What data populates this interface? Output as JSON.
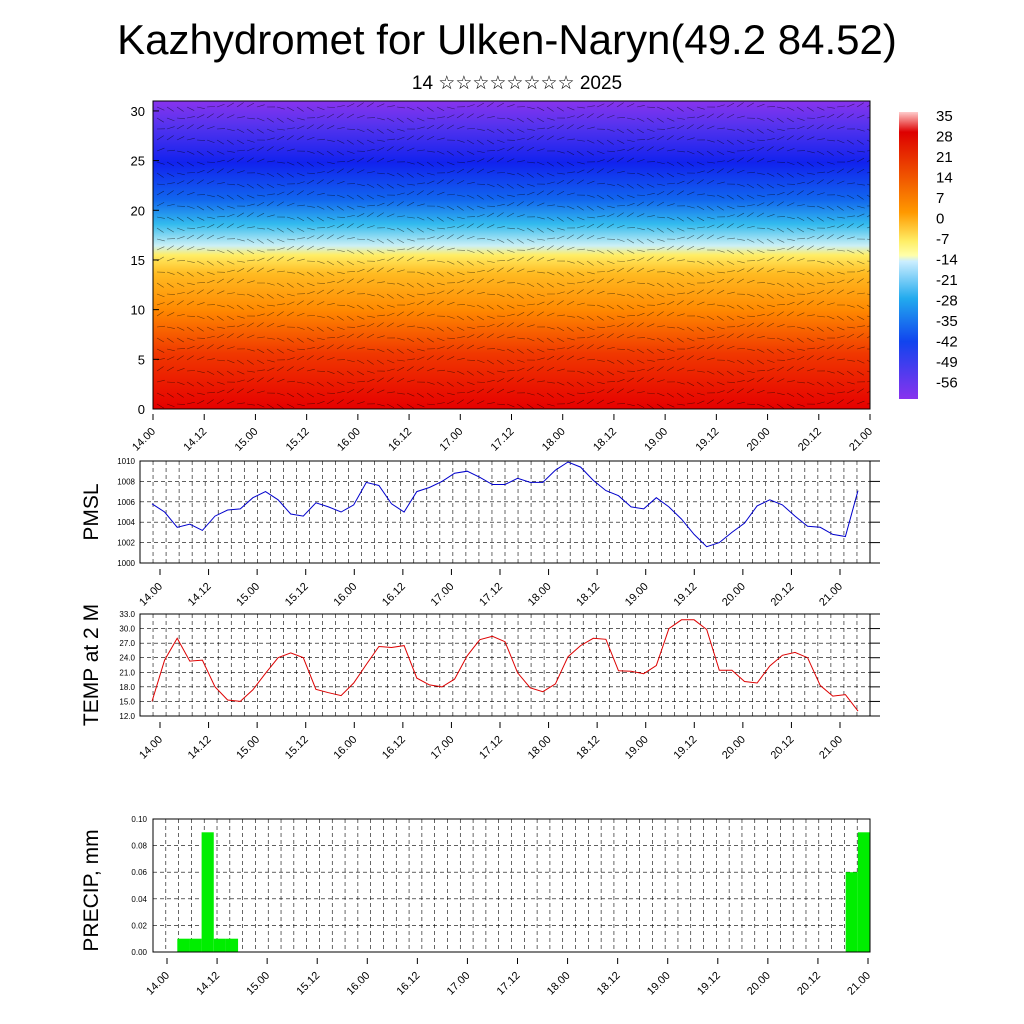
{
  "title": "Kazhydromet for Ulken-Naryn(49.2 84.52)",
  "subtitle": "14 ☆☆☆☆☆☆☆☆ 2025",
  "time_labels": [
    "14.00",
    "14.12",
    "15.00",
    "15.12",
    "16.00",
    "16.12",
    "17.00",
    "17.12",
    "18.00",
    "18.12",
    "19.00",
    "19.12",
    "20.00",
    "20.12",
    "21.00"
  ],
  "chart_data": [
    {
      "type": "heatmap",
      "name": "upper-air",
      "x": [
        "14.00",
        "14.12",
        "15.00",
        "15.12",
        "16.00",
        "16.12",
        "17.00",
        "17.12",
        "18.00",
        "18.12",
        "19.00",
        "19.12",
        "20.00",
        "20.12",
        "21.00"
      ],
      "ylim": [
        0,
        31
      ],
      "yticks": [
        "0",
        "5",
        "10",
        "15",
        "20",
        "25",
        "30"
      ],
      "colorbar_labels": [
        "35",
        "28",
        "21",
        "14",
        "7",
        "0",
        "-7",
        "-14",
        "-21",
        "-28",
        "-35",
        "-42",
        "-49",
        "-56"
      ],
      "value_range": [
        -63,
        42
      ],
      "levels": [
        0,
        5,
        10,
        15,
        20,
        25,
        30
      ],
      "profile": [
        28,
        25,
        18,
        7,
        -20,
        -45,
        -58
      ],
      "colors": {
        "hot": "#e60000",
        "warm": "#ff9900",
        "yellow": "#ffee55",
        "cyan": "#33bbee",
        "blue": "#1133ee",
        "violet": "#8833ee"
      }
    },
    {
      "type": "line",
      "name": "pmsl",
      "ylabel": "PMSL",
      "ylim": [
        1000,
        1010
      ],
      "yticks": [
        "1000",
        "1002",
        "1004",
        "1006",
        "1008",
        "1010"
      ],
      "color": "#0000cc",
      "values": [
        1005.8,
        1005.0,
        1003.5,
        1003.8,
        1003.2,
        1004.6,
        1005.2,
        1005.3,
        1006.4,
        1007.0,
        1006.2,
        1004.8,
        1004.6,
        1005.9,
        1005.5,
        1005.0,
        1005.7,
        1007.9,
        1007.6,
        1005.8,
        1005.0,
        1007.0,
        1007.4,
        1008.0,
        1008.8,
        1009.0,
        1008.4,
        1007.7,
        1007.7,
        1008.3,
        1007.9,
        1007.9,
        1009.1,
        1009.9,
        1009.4,
        1008.1,
        1007.1,
        1006.6,
        1005.5,
        1005.3,
        1006.4,
        1005.5,
        1004.3,
        1002.8,
        1001.6,
        1002.0,
        1003.0,
        1003.9,
        1005.6,
        1006.2,
        1005.7,
        1004.6,
        1003.6,
        1003.5,
        1002.8,
        1002.6,
        1007.1
      ]
    },
    {
      "type": "line",
      "name": "temp2m",
      "ylabel": "TEMP at 2 M",
      "ylim": [
        12,
        33
      ],
      "yticks": [
        "12.0",
        "15.0",
        "18.0",
        "21.0",
        "24.0",
        "27.0",
        "30.0",
        "33.0"
      ],
      "color": "#dd0000",
      "values": [
        15.0,
        23.5,
        28.0,
        23.3,
        23.5,
        18.0,
        15.3,
        15.0,
        17.4,
        20.8,
        24.0,
        25.0,
        24.0,
        17.5,
        16.8,
        16.2,
        18.8,
        22.6,
        26.3,
        26.1,
        26.5,
        19.8,
        18.4,
        18.0,
        19.6,
        24.4,
        27.7,
        28.4,
        27.3,
        20.9,
        17.8,
        17.0,
        18.6,
        24.2,
        26.5,
        28.0,
        27.8,
        21.3,
        21.2,
        20.7,
        22.4,
        30.0,
        31.8,
        31.8,
        29.8,
        21.4,
        21.4,
        19.1,
        18.8,
        22.3,
        24.5,
        25.1,
        24.0,
        18.3,
        16.1,
        16.4,
        13.0
      ]
    },
    {
      "type": "bar",
      "name": "precip",
      "ylabel": "PRECIP, mm",
      "ylim": [
        0,
        0.1
      ],
      "yticks": [
        "0.00",
        "0.02",
        "0.04",
        "0.06",
        "0.08",
        "0.10"
      ],
      "color": "#00ee00",
      "values": [
        0,
        0,
        0.01,
        0.01,
        0.09,
        0.01,
        0.01,
        0,
        0,
        0,
        0,
        0,
        0,
        0,
        0,
        0,
        0,
        0,
        0,
        0,
        0,
        0,
        0,
        0,
        0,
        0,
        0,
        0,
        0,
        0,
        0,
        0,
        0,
        0,
        0,
        0,
        0,
        0,
        0,
        0,
        0,
        0,
        0,
        0,
        0,
        0,
        0,
        0,
        0,
        0,
        0,
        0,
        0,
        0,
        0,
        0,
        0,
        0.06,
        0.09
      ]
    }
  ]
}
